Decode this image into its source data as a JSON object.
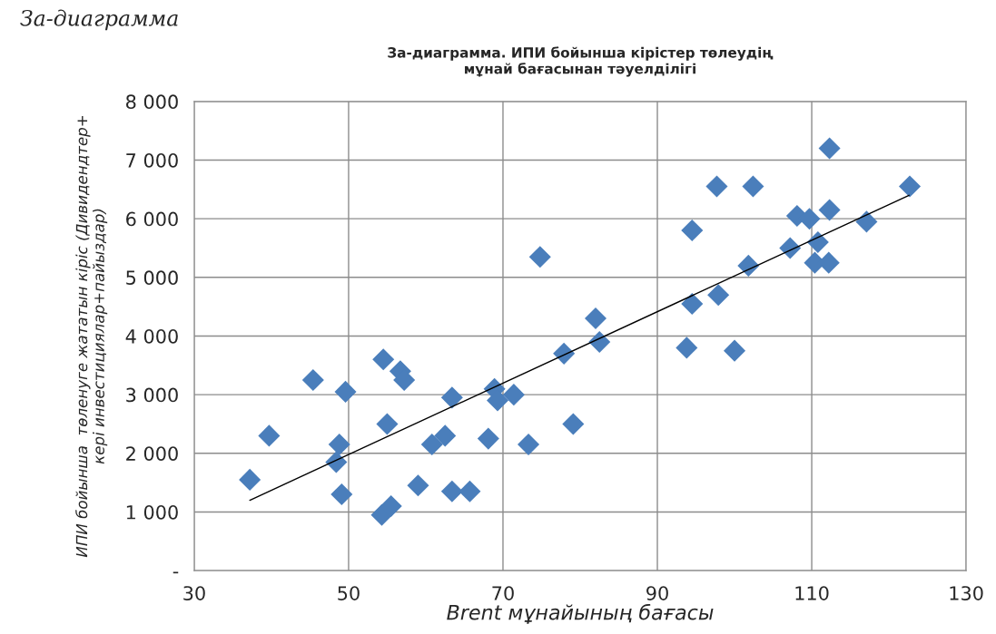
{
  "chart_data": {
    "type": "scatter",
    "title": "За-диаграмма. ИПИ бойынша кірістер төлеудің\nмұнай бағасынан тәуелділігі",
    "xlabel": "Brent мұнайының бағасы",
    "ylabel": "ИПИ бойынша  төленуге жататын кіріс (Дивидендтер+\nкері инвестициялар+пайыздар)",
    "annotations": [
      "За-диаграмма"
    ],
    "series": [
      {
        "color": "#4a7ebb",
        "marker": "diamond",
        "x": [
          37.2,
          39.7,
          45.4,
          48.8,
          48.4,
          49.1,
          49.6,
          54.5,
          55.0,
          54.3,
          55.5,
          56.7,
          57.2,
          59.0,
          60.8,
          62.5,
          63.4,
          63.4,
          65.7,
          68.1,
          68.9,
          69.3,
          71.4,
          73.3,
          74.8,
          77.9,
          79.1,
          82.0,
          82.5,
          93.8,
          94.5,
          94.5,
          97.7,
          97.9,
          100.0,
          101.8,
          102.4,
          107.2,
          108.1,
          109.7,
          110.8,
          110.4,
          112.3,
          112.3,
          112.2,
          117.1,
          122.7
        ],
        "values": [
          1550,
          2300,
          3250,
          2150,
          1850,
          1300,
          3050,
          3600,
          2500,
          950,
          1100,
          3400,
          3250,
          1450,
          2150,
          2300,
          2950,
          1350,
          1350,
          2250,
          3100,
          2900,
          3000,
          2150,
          5350,
          3700,
          2500,
          4300,
          3900,
          3800,
          4550,
          5800,
          6550,
          4700,
          3750,
          5200,
          6550,
          5500,
          6050,
          6000,
          5600,
          5250,
          7200,
          6150,
          5250,
          5950,
          6550
        ]
      },
      {
        "type": "line",
        "color": "#000000",
        "marker": "none",
        "line_style": "solid",
        "x": [
          37.2,
          122.6
        ],
        "values": [
          1200,
          6400
        ]
      }
    ],
    "xlim": [
      30,
      130
    ],
    "xticks": [
      30,
      50,
      70,
      90,
      110,
      130
    ],
    "ylim": [
      0,
      8000
    ],
    "yticks": [
      {
        "value": 0,
        "label": "-"
      },
      {
        "value": 1000,
        "label": "1 000"
      },
      {
        "value": 2000,
        "label": "2 000"
      },
      {
        "value": 3000,
        "label": "3 000"
      },
      {
        "value": 4000,
        "label": "4 000"
      },
      {
        "value": 5000,
        "label": "5 000"
      },
      {
        "value": 6000,
        "label": "6 000"
      },
      {
        "value": 7000,
        "label": "7 000"
      },
      {
        "value": 8000,
        "label": "8 000"
      }
    ],
    "grid": true,
    "legend": false
  }
}
